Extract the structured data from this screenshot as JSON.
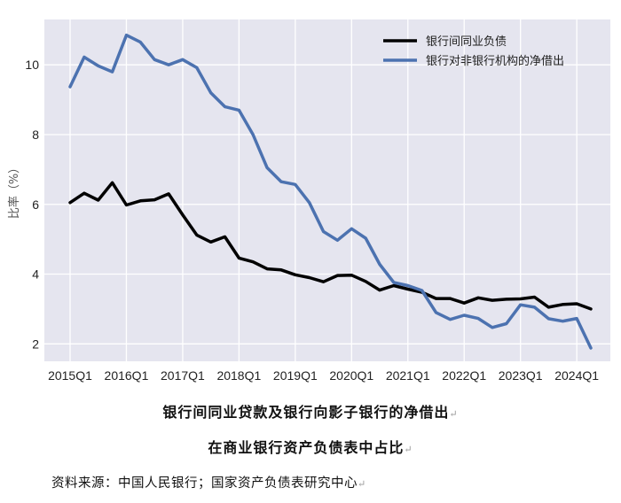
{
  "chart_data": {
    "type": "line",
    "x": [
      "2015Q1",
      "2015Q2",
      "2015Q3",
      "2015Q4",
      "2016Q1",
      "2016Q2",
      "2016Q3",
      "2016Q4",
      "2017Q1",
      "2017Q2",
      "2017Q3",
      "2017Q4",
      "2018Q1",
      "2018Q2",
      "2018Q3",
      "2018Q4",
      "2019Q1",
      "2019Q2",
      "2019Q3",
      "2019Q4",
      "2020Q1",
      "2020Q2",
      "2020Q3",
      "2020Q4",
      "2021Q1",
      "2021Q2",
      "2021Q3",
      "2021Q4",
      "2022Q1",
      "2022Q2",
      "2022Q3",
      "2022Q4",
      "2023Q1",
      "2023Q2",
      "2023Q3",
      "2023Q4",
      "2024Q1",
      "2024Q2"
    ],
    "x_ticks": [
      "2015Q1",
      "2016Q1",
      "2017Q1",
      "2018Q1",
      "2019Q1",
      "2020Q1",
      "2021Q1",
      "2022Q1",
      "2023Q1",
      "2024Q1"
    ],
    "y_ticks": [
      "2",
      "4",
      "6",
      "8",
      "10"
    ],
    "ylim": [
      1.5,
      11.3
    ],
    "ylabel": "比率（%）",
    "grid": true,
    "legend_position": "top-right",
    "series": [
      {
        "name": "银行间同业负债",
        "color": "#000000",
        "values": [
          6.05,
          6.32,
          6.12,
          6.62,
          5.98,
          6.1,
          6.13,
          6.3,
          5.7,
          5.12,
          4.92,
          5.07,
          4.46,
          4.35,
          4.15,
          4.12,
          3.98,
          3.9,
          3.78,
          3.96,
          3.97,
          3.79,
          3.54,
          3.67,
          3.57,
          3.48,
          3.3,
          3.3,
          3.17,
          3.32,
          3.25,
          3.28,
          3.29,
          3.34,
          3.05,
          3.13,
          3.15,
          3.0
        ]
      },
      {
        "name": "银行对非银行机构的净借出",
        "color": "#4C72B0",
        "values": [
          9.37,
          10.22,
          9.97,
          9.8,
          10.85,
          10.65,
          10.15,
          10.0,
          10.15,
          9.92,
          9.2,
          8.8,
          8.7,
          8.0,
          7.05,
          6.65,
          6.57,
          6.05,
          5.22,
          4.97,
          5.3,
          5.03,
          4.28,
          3.76,
          3.67,
          3.53,
          2.9,
          2.7,
          2.82,
          2.73,
          2.47,
          2.58,
          3.12,
          3.05,
          2.72,
          2.65,
          2.73,
          1.88
        ]
      }
    ]
  },
  "caption": {
    "line1": "银行间同业贷款及银行向影子银行的净借出",
    "line2": "在商业银行资产负债表中占比",
    "mark": "↵"
  },
  "source": {
    "text": "资料来源：中国人民银行；国家资产负债表研究中心",
    "mark": "↵"
  },
  "colors": {
    "plot_bg": "#E5E5EF",
    "grid": "#FFFFFF"
  }
}
